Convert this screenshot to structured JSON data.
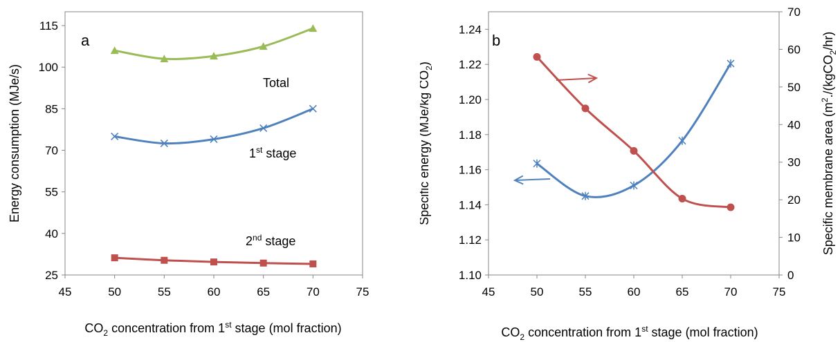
{
  "colors": {
    "green": "#9BBB59",
    "blue": "#4F81BD",
    "red": "#C0504D",
    "axis": "#868686"
  },
  "chart_data": [
    {
      "type": "line",
      "panel_label": "a",
      "xlabel": {
        "pre": "CO",
        "sub": "2",
        "mid": " concentration from 1",
        "sup": "st",
        "post": " stage (mol fraction)"
      },
      "ylabel": "Energy consumption (MJe/s)",
      "xlim": [
        45,
        75
      ],
      "ylim": [
        25,
        120
      ],
      "x_ticks": [
        "45",
        "50",
        "55",
        "60",
        "65",
        "70",
        "75"
      ],
      "y_ticks": [
        "25",
        "40",
        "55",
        "70",
        "85",
        "100",
        "115"
      ],
      "x": [
        50,
        55,
        60,
        65,
        70
      ],
      "series": [
        {
          "name": "Total",
          "label": {
            "text": "Total"
          },
          "marker": "triangle",
          "color": "#9BBB59",
          "values": [
            106,
            103,
            104,
            107.5,
            114
          ]
        },
        {
          "name": "1st stage",
          "label": {
            "text": "1",
            "sup": "st",
            "post": " stage"
          },
          "marker": "x",
          "color": "#4F81BD",
          "values": [
            75,
            72.5,
            74,
            78,
            85
          ]
        },
        {
          "name": "2nd stage",
          "label": {
            "text": "2",
            "sup": "nd",
            "post": " stage"
          },
          "marker": "square",
          "color": "#C0504D",
          "values": [
            31.2,
            30.3,
            29.7,
            29.3,
            29.0
          ]
        }
      ]
    },
    {
      "type": "line",
      "panel_label": "b",
      "xlabel": {
        "pre": "CO",
        "sub": "2",
        "mid": " concentration from 1",
        "sup": "st",
        "post": " stage (mol fraction)"
      },
      "ylabel": {
        "pre": "Specific energy (MJe/kg CO",
        "sub": "2",
        "post": ")"
      },
      "y2label": {
        "pre": "Specific membrane area (m",
        "sup": "2",
        "mid": "./(kgCO",
        "sub": "2",
        "post": "/hr)"
      },
      "xlim": [
        45,
        75
      ],
      "ylim": [
        1.1,
        1.25
      ],
      "y2lim": [
        0,
        70
      ],
      "x_ticks": [
        "45",
        "50",
        "55",
        "60",
        "65",
        "70",
        "75"
      ],
      "y_ticks": [
        "1.10",
        "1.12",
        "1.14",
        "1.16",
        "1.18",
        "1.20",
        "1.22",
        "1.24"
      ],
      "y2_ticks": [
        "0",
        "10",
        "20",
        "30",
        "40",
        "50",
        "60",
        "70"
      ],
      "x": [
        50,
        55,
        60,
        65,
        70
      ],
      "series": [
        {
          "name": "Specific energy",
          "axis": "left",
          "marker": "star",
          "color": "#4F81BD",
          "values": [
            1.1635,
            1.145,
            1.151,
            1.1765,
            1.2205
          ]
        },
        {
          "name": "Specific membrane area",
          "axis": "right",
          "marker": "circle",
          "color": "#C0504D",
          "values": [
            58,
            44.3,
            33,
            20.3,
            18
          ]
        }
      ]
    }
  ]
}
